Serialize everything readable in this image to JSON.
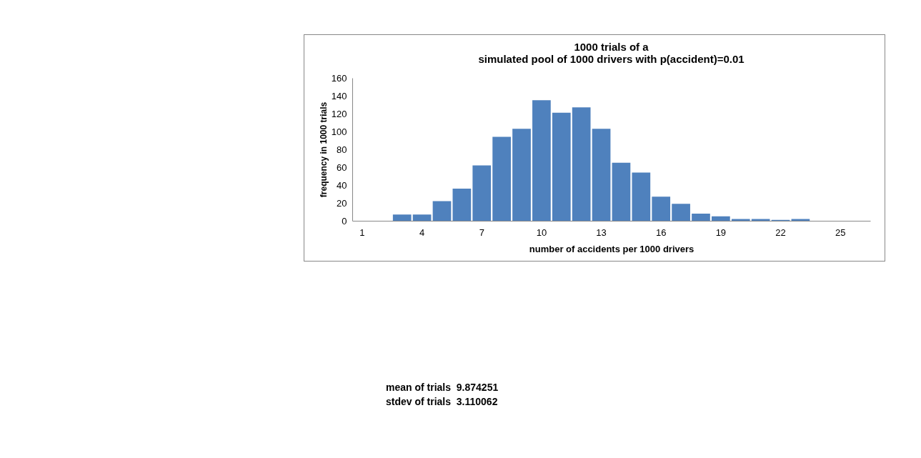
{
  "chart_data": {
    "type": "bar",
    "title": "1000 trials of a\nsimulated pool of 1000 drivers with p(accident)=0.01",
    "xlabel": "number of accidents  per 1000 drivers",
    "ylabel": "frequency in 1000 trials",
    "categories": [
      "1",
      null,
      null,
      "4",
      null,
      null,
      "7",
      null,
      null,
      "10",
      null,
      null,
      "13",
      null,
      null,
      "16",
      null,
      null,
      "19",
      null,
      null,
      "22",
      null,
      null,
      "25",
      null
    ],
    "values": [
      0,
      0,
      7,
      7,
      22,
      36,
      62,
      94,
      103,
      135,
      121,
      127,
      103,
      65,
      54,
      27,
      19,
      8,
      5,
      2,
      2,
      1,
      2,
      0,
      0,
      0
    ],
    "color": "#4f81bd",
    "ylim": [
      0,
      160
    ],
    "yticks": [
      0,
      20,
      40,
      60,
      80,
      100,
      120,
      140,
      160
    ],
    "grid": false,
    "annotations": [
      "mean of trials  9.874251",
      "stdev of trials  3.110062"
    ]
  }
}
